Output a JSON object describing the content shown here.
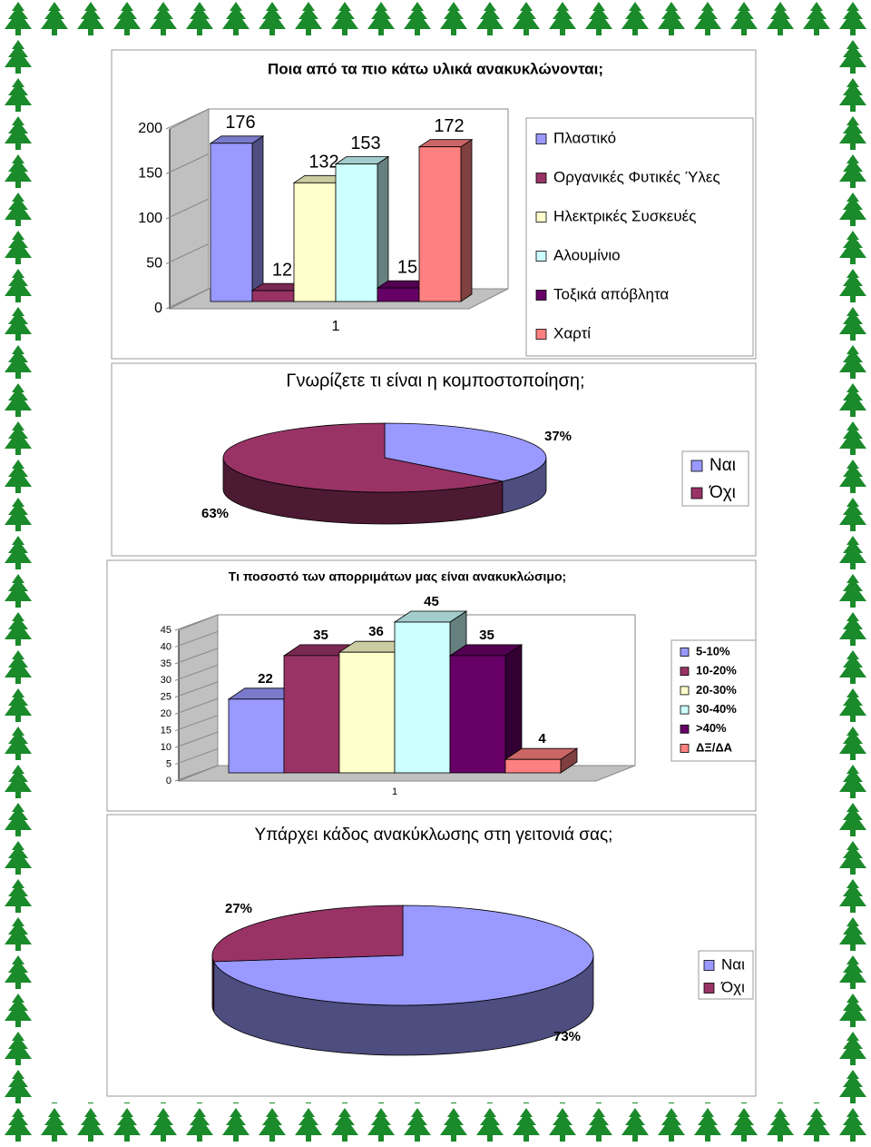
{
  "chart_data": [
    {
      "type": "bar",
      "title": "Ποια από τα πιο κάτω υλικά ανακυκλώνονται;",
      "categories": [
        "1"
      ],
      "series": [
        {
          "name": "Πλαστικό",
          "color": "#9999ff",
          "values": [
            176
          ]
        },
        {
          "name": "Οργανικές Φυτικές Ύλες",
          "color": "#993366",
          "values": [
            12
          ]
        },
        {
          "name": "Ηλεκτρικές Συσκευές",
          "color": "#ffffcc",
          "values": [
            132
          ]
        },
        {
          "name": "Αλουμίνιο",
          "color": "#ccffff",
          "values": [
            153
          ]
        },
        {
          "name": "Τοξικά απόβλητα",
          "color": "#660066",
          "values": [
            15
          ]
        },
        {
          "name": "Χαρτί",
          "color": "#ff8080",
          "values": [
            172
          ]
        }
      ],
      "ylim": [
        0,
        200
      ],
      "yticks": [
        0,
        50,
        100,
        150,
        200
      ],
      "grid": false,
      "legend": "right"
    },
    {
      "type": "pie",
      "title": "Γνωρίζετε τι είναι η κομποστοποίηση;",
      "categories": [
        "Ναι",
        "Όχι"
      ],
      "values": [
        37,
        63
      ],
      "value_labels": [
        "37%",
        "63%"
      ],
      "colors": [
        "#9999ff",
        "#993366"
      ],
      "legend": "right"
    },
    {
      "type": "bar",
      "title": "Τι ποσοστό των απορριμάτων μας είναι ανακυκλώσιμο;",
      "categories": [
        "1"
      ],
      "series": [
        {
          "name": "5-10%",
          "color": "#9999ff",
          "values": [
            22
          ]
        },
        {
          "name": "10-20%",
          "color": "#993366",
          "values": [
            35
          ]
        },
        {
          "name": "20-30%",
          "color": "#ffffcc",
          "values": [
            36
          ]
        },
        {
          "name": "30-40%",
          "color": "#ccffff",
          "values": [
            45
          ]
        },
        {
          "name": ">40%",
          "color": "#660066",
          "values": [
            35
          ]
        },
        {
          "name": "ΔΞ/ΔΑ",
          "color": "#ff8080",
          "values": [
            4
          ]
        }
      ],
      "ylim": [
        0,
        45
      ],
      "yticks": [
        0,
        5,
        10,
        15,
        20,
        25,
        30,
        35,
        40,
        45
      ],
      "grid": false,
      "legend": "right"
    },
    {
      "type": "pie",
      "title": "Υπάρχει κάδος ανακύκλωσης στη γειτονιά σας;",
      "categories": [
        "Ναι",
        "Όχι"
      ],
      "values": [
        73,
        27
      ],
      "value_labels": [
        "73%",
        "27%"
      ],
      "colors": [
        "#9999ff",
        "#993366"
      ],
      "legend": "right"
    }
  ]
}
